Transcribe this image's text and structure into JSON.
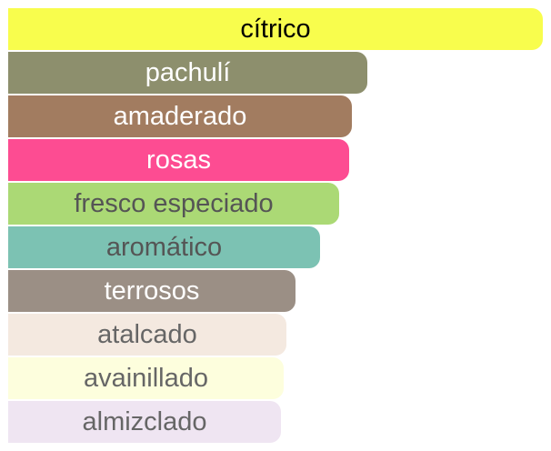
{
  "chart_data": {
    "type": "bar",
    "orientation": "horizontal",
    "title": "",
    "xlabel": "",
    "ylabel": "",
    "grid": false,
    "xlim": [
      0,
      100
    ],
    "categories": [
      "cítrico",
      "pachulí",
      "amaderado",
      "rosas",
      "fresco especiado",
      "aromático",
      "terrosos",
      "atalcado",
      "avainillado",
      "almizclado"
    ],
    "values": [
      100,
      67.1,
      64.3,
      63.8,
      61.9,
      58.3,
      53.8,
      52.0,
      51.6,
      51.1
    ],
    "colors": [
      "#f8fd4d",
      "#8d8f6d",
      "#a27c60",
      "#fd4c92",
      "#abd975",
      "#7cc2b3",
      "#9b8f85",
      "#f4e9e0",
      "#fdfedd",
      "#efe5f2"
    ],
    "label_colors": [
      "#000000",
      "#ffffff",
      "#ffffff",
      "#ffffff",
      "#555555",
      "#555555",
      "#ffffff",
      "#666666",
      "#666666",
      "#666666"
    ]
  }
}
